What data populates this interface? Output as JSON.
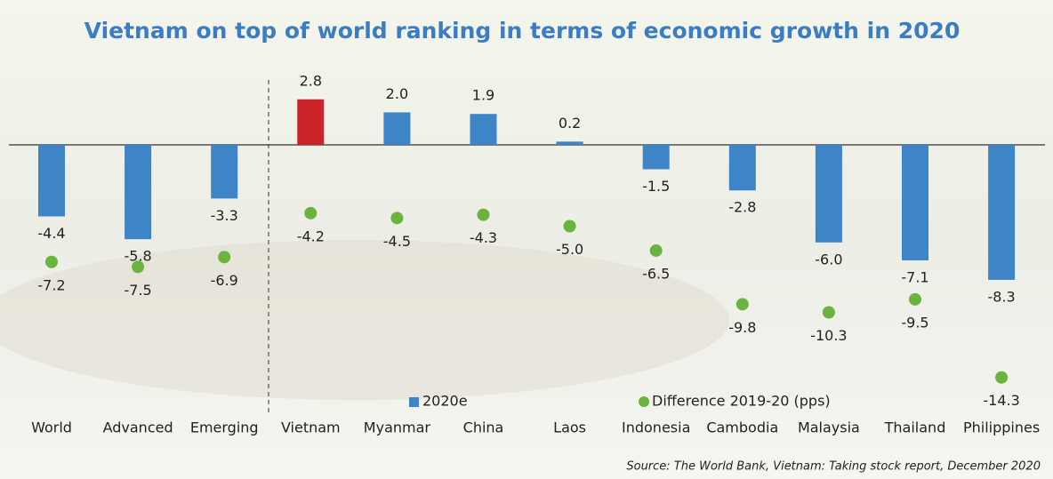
{
  "chart_data": {
    "type": "bar",
    "title": "Vietnam on top of world ranking in terms of economic growth in 2020",
    "source": "Source: The World Bank, Vietnam: Taking stock report, December 2020",
    "categories": [
      "World",
      "Advanced",
      "Emerging",
      "Vietnam",
      "Myanmar",
      "China",
      "Laos",
      "Indonesia",
      "Cambodia",
      "Malaysia",
      "Thailand",
      "Philippines"
    ],
    "series": [
      {
        "name": "2020e",
        "color": "#3d85c6",
        "colors": [
          "#3d85c6",
          "#3d85c6",
          "#3d85c6",
          "#cc2229",
          "#3d85c6",
          "#3d85c6",
          "#3d85c6",
          "#3d85c6",
          "#3d85c6",
          "#3d85c6",
          "#3d85c6",
          "#3d85c6"
        ],
        "values": [
          -4.4,
          -5.8,
          -3.3,
          2.8,
          2.0,
          1.9,
          0.2,
          -1.5,
          -2.8,
          -6.0,
          -7.1,
          -8.3
        ],
        "value_labels": [
          "-4.4",
          "-5.8",
          "-3.3",
          "2.8",
          "2.0",
          "1.9",
          "0.2",
          "-1.5",
          "-2.8",
          "-6.0",
          "-7.1",
          "-8.3"
        ]
      },
      {
        "name": "Difference 2019-20 (pps)",
        "color": "#6ab33e",
        "mark": "dot",
        "values": [
          -7.2,
          -7.5,
          -6.9,
          -4.2,
          -4.5,
          -4.3,
          -5.0,
          -6.5,
          -9.8,
          -10.3,
          -9.5,
          -14.3
        ],
        "value_labels": [
          "-7.2",
          "-7.5",
          "-6.9",
          "-4.2",
          "-4.5",
          "-4.3",
          "-5.0",
          "-6.5",
          "-9.8",
          "-10.3",
          "-9.5",
          "-14.3"
        ]
      }
    ]
  }
}
